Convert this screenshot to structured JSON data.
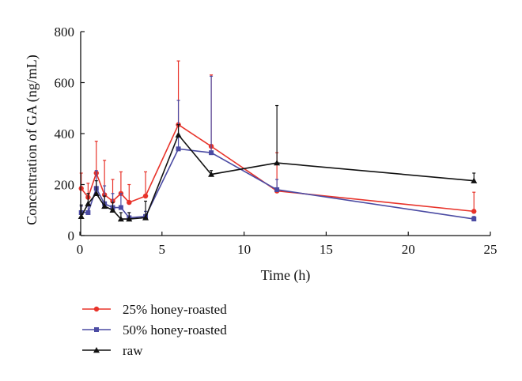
{
  "chart_data": {
    "type": "line",
    "xlabel": "Time (h)",
    "ylabel": "Concentration of GA (ng/mL)",
    "xlim": [
      0,
      25
    ],
    "ylim": [
      0,
      800
    ],
    "xticks": [
      0,
      5,
      10,
      15,
      20,
      25
    ],
    "yticks": [
      0,
      200,
      400,
      600,
      800
    ],
    "grid": false,
    "legend_position": "bottom-left",
    "series": [
      {
        "name": "25% honey-roasted",
        "color": "#e8332a",
        "marker": "circle",
        "x": [
          0.083,
          0.5,
          1,
          1.5,
          2,
          2.5,
          3,
          4,
          6,
          8,
          12,
          24
        ],
        "y": [
          185,
          150,
          245,
          160,
          135,
          165,
          130,
          155,
          435,
          350,
          175,
          95
        ],
        "err": [
          60,
          55,
          125,
          135,
          85,
          85,
          70,
          95,
          250,
          280,
          150,
          75
        ]
      },
      {
        "name": "50% honey-roasted",
        "color": "#4b4ba3",
        "marker": "square",
        "x": [
          0.083,
          0.5,
          1,
          1.5,
          2,
          2.5,
          3,
          4,
          6,
          8,
          12,
          24
        ],
        "y": [
          90,
          90,
          185,
          125,
          110,
          110,
          70,
          75,
          340,
          325,
          180,
          65
        ],
        "err": [
          25,
          25,
          70,
          70,
          55,
          55,
          20,
          20,
          190,
          300,
          40,
          10
        ]
      },
      {
        "name": "raw",
        "color": "#111111",
        "marker": "triangle",
        "x": [
          0.083,
          0.5,
          1,
          1.5,
          2,
          2.5,
          3,
          4,
          6,
          8,
          12,
          24
        ],
        "y": [
          75,
          125,
          165,
          115,
          100,
          65,
          65,
          70,
          395,
          240,
          285,
          215
        ],
        "err": [
          45,
          40,
          50,
          40,
          30,
          25,
          25,
          65,
          40,
          15,
          225,
          30
        ]
      }
    ]
  }
}
